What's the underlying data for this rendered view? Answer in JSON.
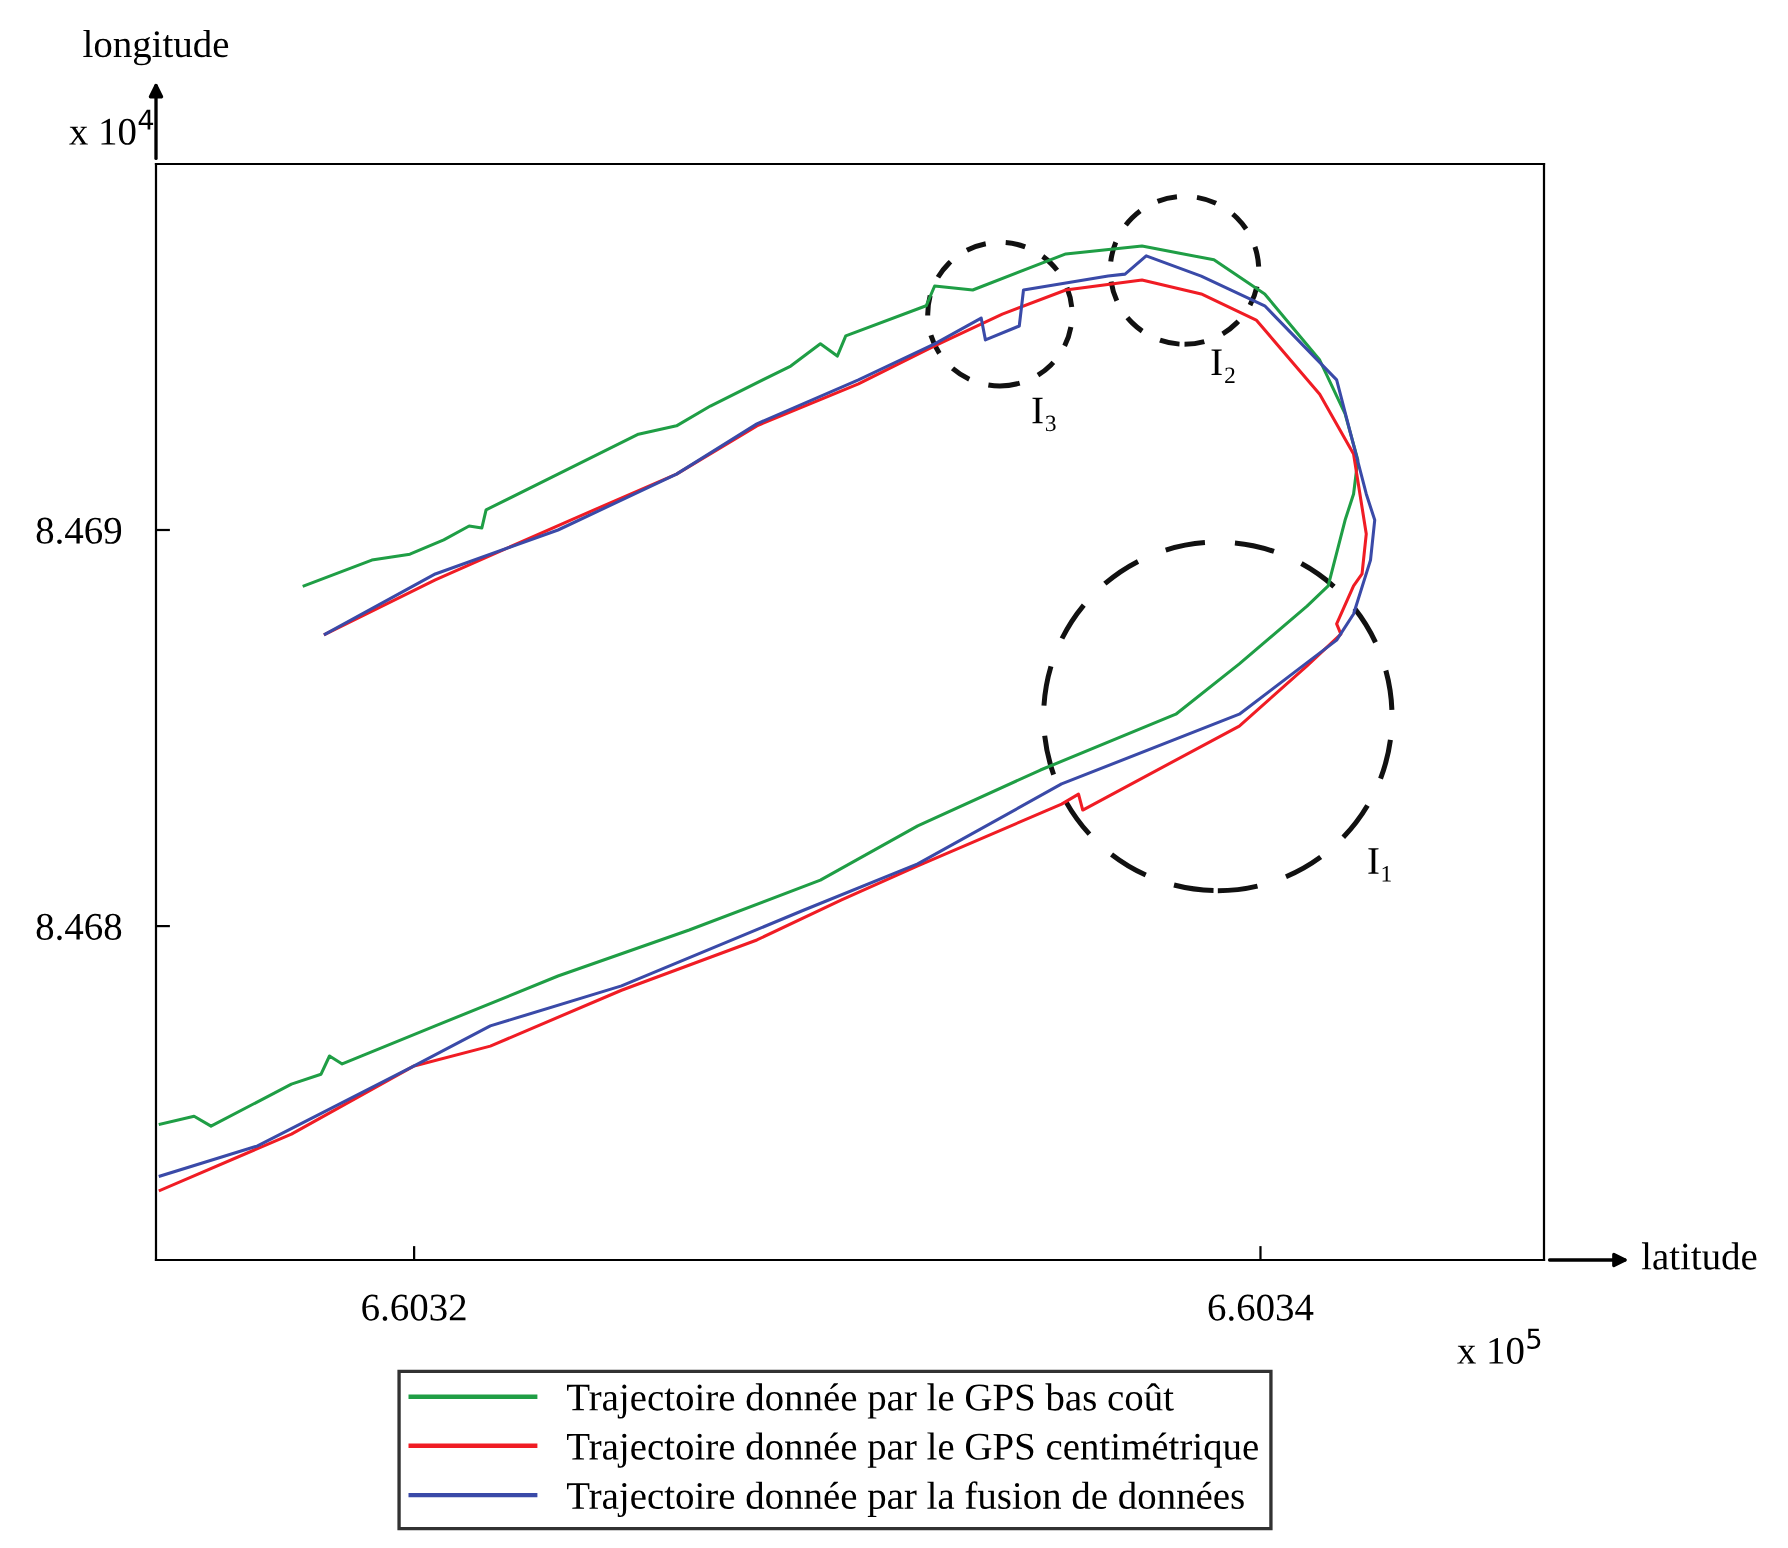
{
  "chart_data": {
    "type": "line",
    "xlabel": "latitude",
    "ylabel": "longitude",
    "xlim": [
      6.603139,
      6.603467
    ],
    "ylim": [
      8.467157,
      8.469924
    ],
    "xticks": [
      6.6032,
      6.6034
    ],
    "yticks": [
      8.468,
      8.469
    ],
    "grid": false,
    "legend": "bottom",
    "marker": "none",
    "line_style": "solid",
    "series": [
      {
        "name": "Trajectoire donnée par le GPS bas coût",
        "color": "#1f9e45",
        "x": [
          6.60314,
          6.603148,
          6.603152,
          6.603171,
          6.603178,
          6.60318,
          6.603183,
          6.603205,
          6.603234,
          6.603265,
          6.603296,
          6.603319,
          6.603348,
          6.60338,
          6.603395,
          6.603411,
          6.603416,
          6.60342,
          6.603422,
          6.603423,
          6.60342,
          6.603414,
          6.603401,
          6.603389,
          6.603372,
          6.603354,
          6.603332,
          6.603323,
          6.603321,
          6.603302,
          6.6033,
          6.603296,
          6.603289,
          6.60327,
          6.603262,
          6.603253,
          6.603234,
          6.603217,
          6.603216,
          6.603213,
          6.603207,
          6.603199,
          6.60319,
          6.603174
        ],
        "values": [
          8.4675,
          8.46752,
          8.467495,
          8.467601,
          8.467626,
          8.467672,
          8.467652,
          8.467748,
          8.467874,
          8.46799,
          8.468116,
          8.468253,
          8.468394,
          8.468535,
          8.468662,
          8.468808,
          8.468859,
          8.469025,
          8.469091,
          8.469177,
          8.469293,
          8.469429,
          8.469596,
          8.469682,
          8.469717,
          8.469697,
          8.469606,
          8.469616,
          8.469566,
          8.46949,
          8.469439,
          8.46947,
          8.469414,
          8.469313,
          8.469263,
          8.469242,
          8.469141,
          8.469051,
          8.469005,
          8.46901,
          8.468975,
          8.468939,
          8.468924,
          8.468859
        ]
      },
      {
        "name": "Trajectoire donnée par le GPS centimétrique",
        "color": "#f01c24",
        "x": [
          6.60314,
          6.603171,
          6.6032,
          6.603218,
          6.603249,
          6.603281,
          6.603301,
          6.603319,
          6.603353,
          6.603357,
          6.603358,
          6.603395,
          6.603411,
          6.603419,
          6.603418,
          6.603422,
          6.603424,
          6.603425,
          6.603422,
          6.603414,
          6.603399,
          6.603386,
          6.603372,
          6.603354,
          6.603339,
          6.603323,
          6.603305,
          6.603281,
          6.603262,
          6.603237,
          6.603205,
          6.603179
        ],
        "values": [
          8.467333,
          8.467475,
          8.467647,
          8.467697,
          8.467838,
          8.467965,
          8.468066,
          8.468152,
          8.468308,
          8.468333,
          8.468293,
          8.468505,
          8.468657,
          8.468737,
          8.468763,
          8.468859,
          8.468889,
          8.46899,
          8.469192,
          8.469343,
          8.46953,
          8.469596,
          8.469631,
          8.469606,
          8.469545,
          8.469465,
          8.469369,
          8.469263,
          8.469141,
          8.469025,
          8.468874,
          8.468737
        ]
      },
      {
        "name": "Trajectoire donnée par la fusion de données",
        "color": "#3a4aa8",
        "x": [
          6.60314,
          6.603163,
          6.6032,
          6.603218,
          6.603249,
          6.603292,
          6.603319,
          6.603353,
          6.603395,
          6.603418,
          6.603422,
          6.603426,
          6.603427,
          6.603425,
          6.603418,
          6.603401,
          6.603386,
          6.603373,
          6.603368,
          6.603364,
          6.603344,
          6.603343,
          6.603335,
          6.603334,
          6.603323,
          6.603305,
          6.603281,
          6.603262,
          6.603234,
          6.603205,
          6.603179
        ],
        "values": [
          8.467369,
          8.467445,
          8.467647,
          8.467748,
          8.467849,
          8.46804,
          8.468157,
          8.468359,
          8.468535,
          8.468722,
          8.468788,
          8.468924,
          8.469025,
          8.469091,
          8.469379,
          8.469566,
          8.469641,
          8.469692,
          8.469646,
          8.469641,
          8.469606,
          8.469515,
          8.46948,
          8.469535,
          8.46947,
          8.469379,
          8.469268,
          8.469141,
          8.469,
          8.468889,
          8.468737
        ]
      }
    ],
    "annotations": [
      "x 10$^{5}$",
      "x 10$^{4}$",
      "I₁",
      "I₂",
      "I₃"
    ]
  }
}
